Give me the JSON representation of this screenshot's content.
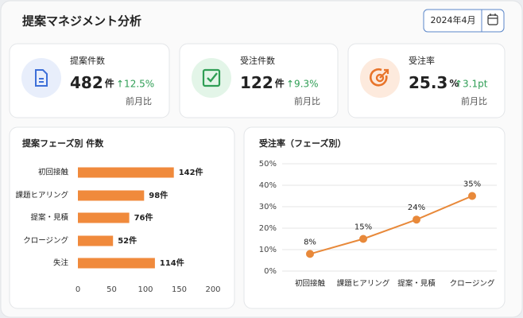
{
  "header": {
    "title": "提案マネジメント分析",
    "date": "2024年4月"
  },
  "kpis": [
    {
      "label": "提案件数",
      "value": 482,
      "unit": "件",
      "change": "↑12.5%",
      "compare": "前月比"
    },
    {
      "label": "受注件数",
      "value": 122,
      "unit": "件",
      "change": "↑9.3%",
      "compare": "前月比"
    },
    {
      "label": "受注率",
      "value": 25.3,
      "unit": "%",
      "change": "↑3.1pt",
      "compare": "前月比"
    }
  ],
  "chart_data": [
    {
      "type": "bar",
      "orientation": "horizontal",
      "title": "提案フェーズ別 件数",
      "categories": [
        "初回接触",
        "課題ヒアリング",
        "提案・見積",
        "クロージング",
        "失注"
      ],
      "values": [
        142,
        98,
        76,
        52,
        114
      ],
      "value_labels": [
        "142件",
        "98件",
        "76件",
        "52件",
        "114件"
      ],
      "xlim": [
        0,
        200
      ],
      "xticks": [
        0,
        50,
        100,
        150,
        200
      ],
      "color": "#f08a3c"
    },
    {
      "type": "line",
      "title": "受注率（フェーズ別）",
      "categories": [
        "初回接触",
        "課題ヒアリング",
        "提案・見積",
        "クロージング"
      ],
      "values": [
        8,
        15,
        24,
        35
      ],
      "value_labels": [
        "8%",
        "15%",
        "24%",
        "35%"
      ],
      "ylim": [
        0,
        50
      ],
      "yticks": [
        {
          "value": 0,
          "label": "0%"
        },
        {
          "value": 10,
          "label": "10%"
        },
        {
          "value": 20,
          "label": "20%"
        },
        {
          "value": 30,
          "label": "30%"
        },
        {
          "value": 40,
          "label": "40%"
        },
        {
          "value": 50,
          "label": "50%"
        }
      ],
      "grid": true,
      "color": "#e8893a"
    }
  ]
}
